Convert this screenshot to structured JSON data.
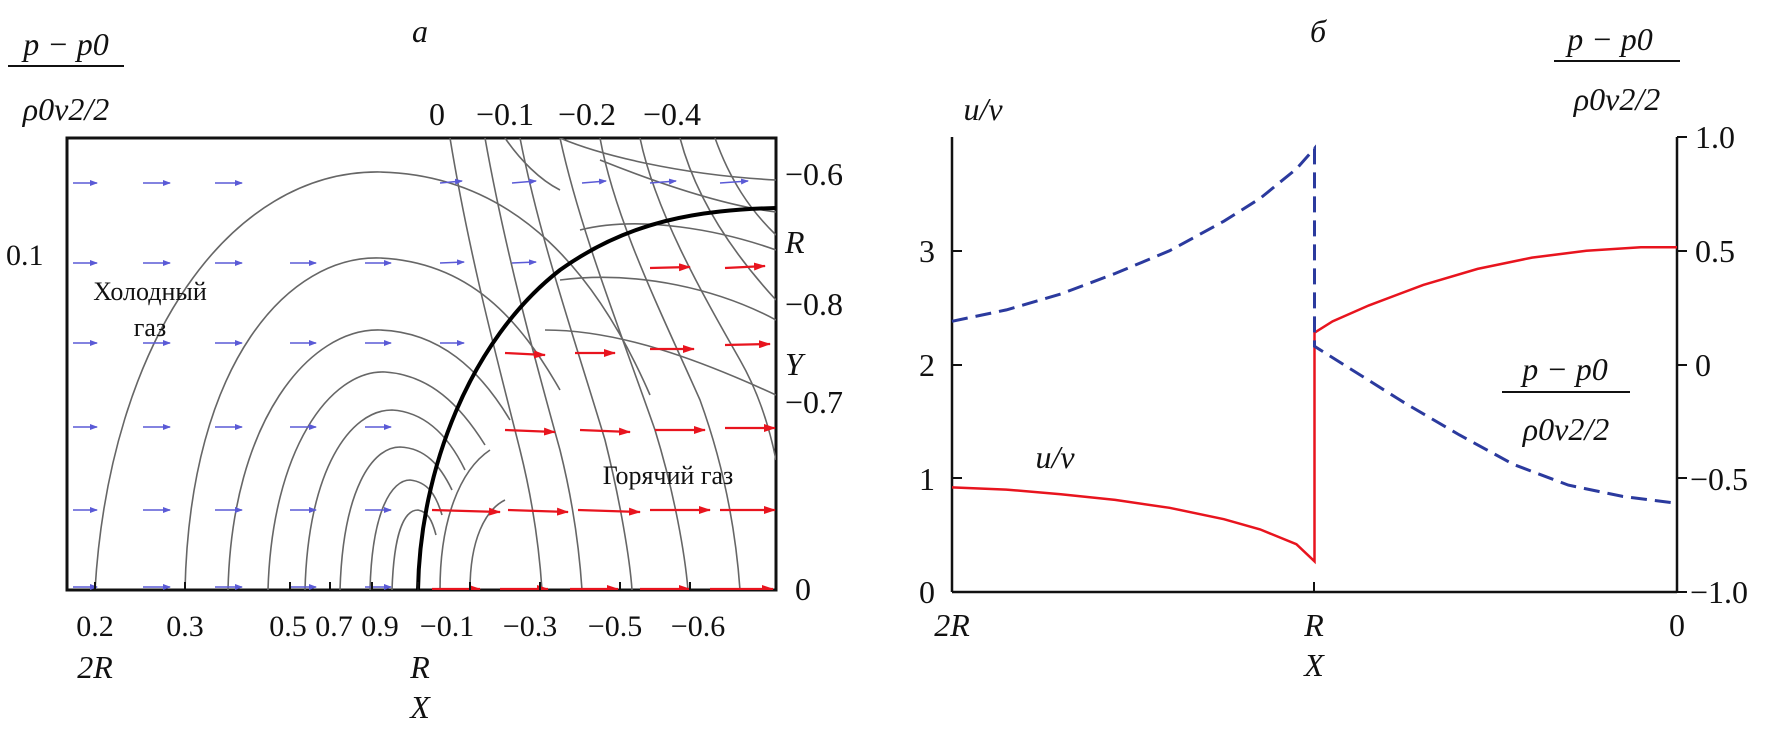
{
  "panel_a": {
    "letter": "а",
    "ylabel_num": "p − p0",
    "ylabel_den": "ρ0v2/2",
    "y_value_label": "0.1",
    "cold_gas": [
      "Холодный",
      "газ"
    ],
    "hot_gas": "Горячий газ",
    "top_levels": [
      "0",
      "−0.1",
      "−0.2",
      "−0.4"
    ],
    "right_levels": [
      "−0.6",
      "−0.8",
      "−0.7",
      "0"
    ],
    "right_R": "R",
    "right_Y": "Y",
    "bottom_ticks": [
      "0.2",
      "0.3",
      "0.5",
      "0.7",
      "0.9",
      "−0.1",
      "−0.3",
      "−0.5",
      "−0.6"
    ],
    "bottom_2R": "2R",
    "bottom_R": "R",
    "bottom_X": "X"
  },
  "panel_b": {
    "letter": "б",
    "left_axis_title": "u/v",
    "right_axis_title_num": "p − p0",
    "right_axis_title_den": "ρ0v2/2",
    "left_ticks": [
      "0",
      "1",
      "2",
      "3"
    ],
    "right_ticks": [
      "1.0",
      "0.5",
      "0",
      "−0.5",
      "−1.0"
    ],
    "x_ticks": [
      "2R",
      "R",
      "0"
    ],
    "xlabel": "X",
    "curve_label_u": "u/v",
    "curve_label_p_num": "p − p0",
    "curve_label_p_den": "ρ0v2/2"
  },
  "chart_data": [
    {
      "type": "line",
      "title": "а",
      "description_kind": "contour map with velocity vectors",
      "x_ticks": [
        "0.2",
        "0.3",
        "0.5",
        "0.7",
        "0.9",
        "−0.1",
        "−0.3",
        "−0.5",
        "−0.6"
      ],
      "x_axis_labels": [
        "2R",
        "R",
        "X"
      ],
      "y_ticks": [
        "0.1"
      ],
      "contour_levels_top": [
        "0",
        "−0.1",
        "−0.2",
        "−0.4"
      ],
      "contour_levels_right": [
        "−0.6",
        "−0.8",
        "−0.7",
        "0"
      ],
      "regions": [
        "Холодный газ",
        "Горячий газ"
      ],
      "colors": {
        "front": "#000000",
        "contours": "#555555",
        "cold_vectors": "#5a5ad6",
        "hot_vectors": "#e8141e"
      }
    },
    {
      "type": "line",
      "title": "б",
      "xlabel": "X",
      "x_ticks": [
        "2R",
        "R",
        "0"
      ],
      "x_domain": [
        0,
        2
      ],
      "ylabel_left": "u/v",
      "ylim_left": [
        0,
        4
      ],
      "ylabel_right": "(p − p0)/(ρ0v²/2)",
      "ylim_right": [
        -1.0,
        1.0
      ],
      "series": [
        {
          "name": "u/v",
          "axis": "left",
          "color": "#e8141e",
          "style": "solid",
          "x": [
            0,
            0.15,
            0.3,
            0.45,
            0.6,
            0.75,
            0.85,
            0.95,
            1.0,
            1.0,
            1.0,
            1.05,
            1.15,
            1.3,
            1.45,
            1.6,
            1.75,
            1.9,
            2.0
          ],
          "y": [
            0.92,
            0.9,
            0.86,
            0.81,
            0.74,
            0.64,
            0.55,
            0.42,
            0.27,
            2.1,
            2.28,
            2.38,
            2.52,
            2.7,
            2.84,
            2.94,
            3.0,
            3.03,
            3.03
          ]
        },
        {
          "name": "(p − p0)/(ρ0v²/2)",
          "axis": "right",
          "color": "#2b3a9e",
          "style": "dashed",
          "x": [
            0,
            0.15,
            0.3,
            0.45,
            0.6,
            0.75,
            0.85,
            0.95,
            1.0,
            1.0,
            1.0,
            1.1,
            1.25,
            1.4,
            1.55,
            1.7,
            1.85,
            2.0
          ],
          "y": [
            0.19,
            0.24,
            0.31,
            0.4,
            0.5,
            0.63,
            0.73,
            0.86,
            0.95,
            0.95,
            0.08,
            -0.02,
            -0.17,
            -0.31,
            -0.44,
            -0.53,
            -0.58,
            -0.61
          ]
        }
      ]
    }
  ]
}
